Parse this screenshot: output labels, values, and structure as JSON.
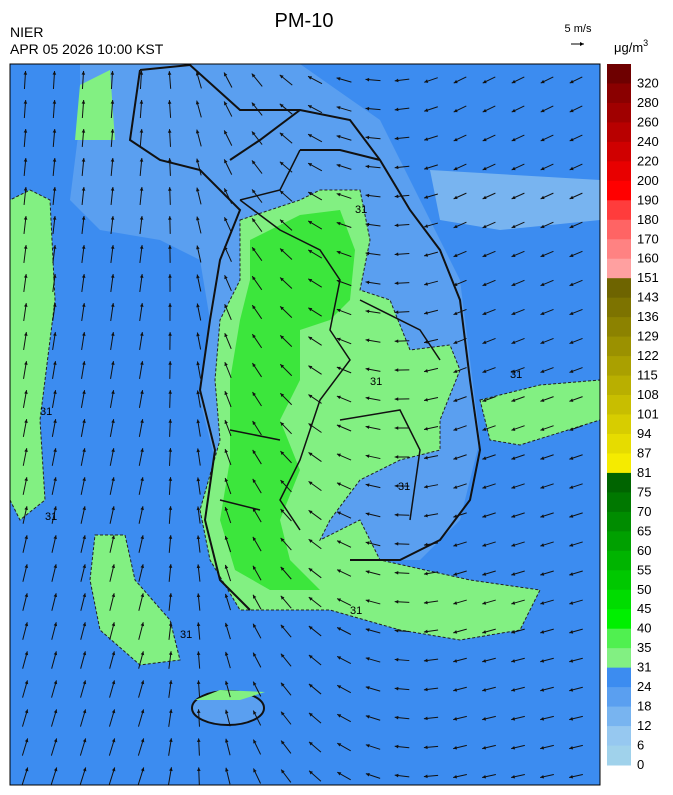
{
  "header": {
    "title": "PM-10",
    "agency": "NIER",
    "datetime": "APR 05 2026 10:00 KST",
    "wind_scale": "5 m/s"
  },
  "legend": {
    "unit": {
      "base": "μg/m",
      "exponent": "3"
    },
    "levels": [
      320,
      280,
      260,
      240,
      220,
      200,
      190,
      180,
      170,
      160,
      151,
      143,
      136,
      129,
      122,
      115,
      108,
      101,
      94,
      87,
      81,
      75,
      70,
      65,
      60,
      55,
      50,
      45,
      40,
      35,
      31,
      24,
      18,
      12,
      6,
      0
    ],
    "colors": [
      "#6e0000",
      "#8a0000",
      "#a00000",
      "#b80000",
      "#d00000",
      "#e80000",
      "#ff0000",
      "#ff3c3c",
      "#ff6464",
      "#ff8282",
      "#ffa0a0",
      "#6e6400",
      "#7d7300",
      "#8c8200",
      "#9b9100",
      "#aaa000",
      "#b9af00",
      "#c8be00",
      "#d7cd00",
      "#e6dc00",
      "#f5eb00",
      "#006400",
      "#007800",
      "#008c00",
      "#00a000",
      "#00b400",
      "#00c800",
      "#00dc00",
      "#00f000",
      "#50f050",
      "#82f082",
      "#3c8cf0",
      "#5a9ff0",
      "#78b4f0",
      "#96c8f0",
      "#a0d2eb"
    ]
  },
  "map": {
    "contour_labels": [
      "31",
      "31",
      "31",
      "31",
      "31",
      "31",
      "31",
      "31"
    ]
  }
}
